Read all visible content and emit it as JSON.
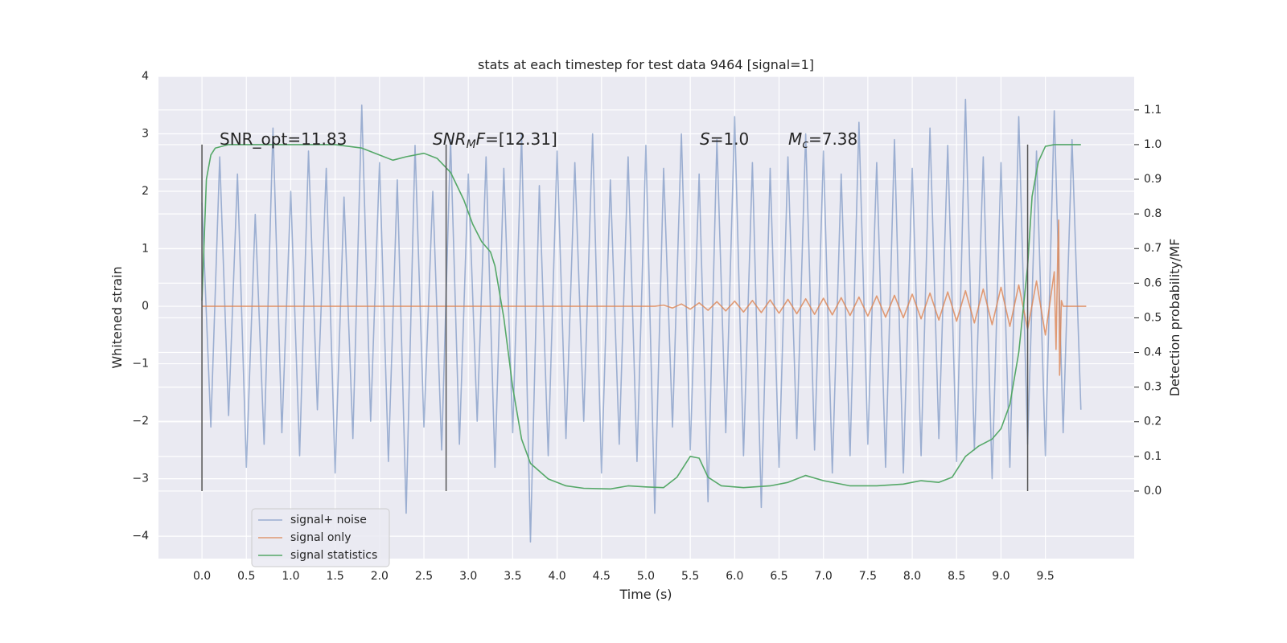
{
  "chart_data": {
    "type": "line",
    "title": "stats at each timestep for test data 9464 [signal=1]",
    "xlabel": "Time (s)",
    "ylabel": "Whitened strain",
    "y2label": "Detection probability/MF",
    "xlim": [
      -0.49,
      10.5
    ],
    "ylim": [
      -4.39,
      4
    ],
    "y2lim": [
      -0.195,
      1.197
    ],
    "xticks": [
      {
        "value": 0,
        "label": "0.0"
      },
      0.5,
      {
        "value": 1,
        "label": "1.0"
      },
      1.5,
      {
        "value": 2,
        "label": "2.0"
      },
      2.5,
      {
        "value": 3,
        "label": "3.0"
      },
      3.5,
      {
        "value": 4,
        "label": "4.0"
      },
      4.5,
      {
        "value": 5,
        "label": "5.0"
      },
      5.5,
      {
        "value": 6,
        "label": "6.0"
      },
      6.5,
      {
        "value": 7,
        "label": "7.0"
      },
      7.5,
      {
        "value": 8,
        "label": "8.0"
      },
      8.5,
      {
        "value": 9,
        "label": "9.0"
      },
      9.5
    ],
    "yticks": [
      {
        "value": -4,
        "label": "−4"
      },
      {
        "value": -3,
        "label": "−3"
      },
      {
        "value": -2,
        "label": "−2"
      },
      {
        "value": -1,
        "label": "−1"
      },
      0,
      1,
      2,
      3,
      4
    ],
    "y2ticks": [
      {
        "value": 0,
        "label": "0.0"
      },
      0.1,
      0.2,
      0.3,
      0.4,
      0.5,
      0.6,
      0.7,
      0.8,
      0.9,
      {
        "value": 1,
        "label": "1.0"
      },
      1.1
    ],
    "grid": true,
    "legend": "lower left",
    "vlines": {
      "x": [
        0,
        2.75,
        9.3
      ],
      "ymin": 0,
      "ymax": 1,
      "axis": "y2",
      "color": "#555555"
    },
    "annotations": [
      [
        {
          "text": "SNR_opt=11.83"
        }
      ],
      [
        {
          "text": "SNR",
          "style": "italic"
        },
        {
          "text": "M",
          "style": "italic-sub"
        },
        {
          "text": "F",
          "style": "italic"
        },
        {
          "text": "=[12.31]"
        }
      ],
      [
        {
          "text": "S",
          "style": "italic"
        },
        {
          "text": "=1.0"
        }
      ],
      [
        {
          "text": "M",
          "style": "italic"
        },
        {
          "text": "c",
          "style": "italic-sub"
        },
        {
          "text": "=7.38"
        }
      ]
    ],
    "series": [
      {
        "name": "signal+ noise",
        "color": "#4c72b0",
        "opacity": 0.5,
        "x": [
          0,
          0.1,
          0.2,
          0.3,
          0.4,
          0.5,
          0.6,
          0.7,
          0.8,
          0.9,
          1,
          1.1,
          1.2,
          1.3,
          1.4,
          1.5,
          1.6,
          1.7,
          1.8,
          1.9,
          2,
          2.1,
          2.2,
          2.3,
          2.4,
          2.5,
          2.6,
          2.7,
          2.8,
          2.9,
          3,
          3.1,
          3.2,
          3.3,
          3.4,
          3.5,
          3.6,
          3.7,
          3.8,
          3.9,
          4,
          4.1,
          4.2,
          4.3,
          4.4,
          4.5,
          4.6,
          4.7,
          4.8,
          4.9,
          5,
          5.1,
          5.2,
          5.3,
          5.4,
          5.5,
          5.6,
          5.7,
          5.8,
          5.9,
          6,
          6.1,
          6.2,
          6.3,
          6.4,
          6.5,
          6.6,
          6.7,
          6.8,
          6.9,
          7,
          7.1,
          7.2,
          7.3,
          7.4,
          7.5,
          7.6,
          7.7,
          7.8,
          7.9,
          8,
          8.1,
          8.2,
          8.3,
          8.4,
          8.5,
          8.6,
          8.7,
          8.8,
          8.9,
          9,
          9.1,
          9.2,
          9.3,
          9.4,
          9.5,
          9.6,
          9.7,
          9.8,
          9.9
        ],
        "values": [
          1.8,
          -2.1,
          2.6,
          -1.9,
          2.3,
          -2.8,
          1.6,
          -2.4,
          3.1,
          -2.2,
          2.0,
          -2.6,
          2.7,
          -1.8,
          2.4,
          -2.9,
          1.9,
          -2.3,
          3.5,
          -2.0,
          2.5,
          -2.7,
          2.2,
          -3.6,
          2.8,
          -2.1,
          2.0,
          -2.5,
          2.9,
          -2.4,
          2.3,
          -2.0,
          2.6,
          -2.8,
          2.4,
          -2.2,
          3.0,
          -4.1,
          2.1,
          -2.6,
          2.7,
          -2.3,
          2.5,
          -2.0,
          3.0,
          -2.9,
          2.2,
          -2.4,
          2.6,
          -2.7,
          2.8,
          -3.6,
          2.4,
          -2.1,
          3.0,
          -2.5,
          2.3,
          -3.4,
          2.9,
          -2.2,
          3.3,
          -2.6,
          2.5,
          -3.5,
          2.4,
          -2.8,
          2.6,
          -2.3,
          3.0,
          -2.5,
          2.7,
          -2.9,
          2.3,
          -2.6,
          3.2,
          -2.4,
          2.5,
          -2.8,
          2.9,
          -2.9,
          2.4,
          -2.6,
          3.1,
          -2.3,
          2.8,
          -2.7,
          3.6,
          -2.5,
          2.6,
          -3.0,
          2.5,
          -2.8,
          3.3,
          -2.4,
          2.7,
          -2.6,
          3.4,
          -2.2,
          2.9,
          -1.8
        ]
      },
      {
        "name": "signal only",
        "color": "#dd8452",
        "opacity": 0.8,
        "x": [
          0,
          5.1,
          5.2,
          5.3,
          5.4,
          5.5,
          5.6,
          5.7,
          5.8,
          5.9,
          6,
          6.1,
          6.2,
          6.3,
          6.4,
          6.5,
          6.6,
          6.7,
          6.8,
          6.9,
          7,
          7.1,
          7.2,
          7.3,
          7.4,
          7.5,
          7.6,
          7.7,
          7.8,
          7.9,
          8,
          8.1,
          8.2,
          8.3,
          8.4,
          8.5,
          8.6,
          8.7,
          8.8,
          8.9,
          9,
          9.1,
          9.2,
          9.3,
          9.4,
          9.5,
          9.6,
          9.62,
          9.64,
          9.65,
          9.66,
          9.68,
          9.7,
          9.96
        ],
        "values": [
          0,
          0,
          0.02,
          -0.03,
          0.04,
          -0.05,
          0.06,
          -0.07,
          0.08,
          -0.08,
          0.09,
          -0.1,
          0.1,
          -0.11,
          0.11,
          -0.12,
          0.12,
          -0.13,
          0.13,
          -0.14,
          0.14,
          -0.15,
          0.15,
          -0.16,
          0.16,
          -0.17,
          0.18,
          -0.19,
          0.19,
          -0.2,
          0.21,
          -0.22,
          0.23,
          -0.24,
          0.25,
          -0.26,
          0.27,
          -0.29,
          0.3,
          -0.32,
          0.33,
          -0.35,
          0.37,
          -0.4,
          0.44,
          -0.5,
          0.6,
          -0.75,
          1.0,
          1.5,
          -1.2,
          0.1,
          0,
          0
        ]
      },
      {
        "name": "signal statistics",
        "color": "#55a868",
        "opacity": 1,
        "axis": "y2",
        "x": [
          0,
          0.05,
          0.1,
          0.15,
          0.3,
          1,
          1.5,
          1.8,
          2,
          2.15,
          2.3,
          2.5,
          2.65,
          2.8,
          2.95,
          3.05,
          3.15,
          3.25,
          3.3,
          3.4,
          3.5,
          3.6,
          3.7,
          3.9,
          4.1,
          4.3,
          4.6,
          4.8,
          5,
          5.2,
          5.35,
          5.5,
          5.6,
          5.7,
          5.85,
          6.1,
          6.4,
          6.6,
          6.8,
          7,
          7.3,
          7.6,
          7.9,
          8.1,
          8.3,
          8.45,
          8.6,
          8.75,
          8.9,
          9,
          9.1,
          9.2,
          9.3,
          9.35,
          9.42,
          9.5,
          9.6,
          9.9
        ],
        "values": [
          0.55,
          0.9,
          0.97,
          0.99,
          1.0,
          1.0,
          1.0,
          0.99,
          0.97,
          0.955,
          0.965,
          0.975,
          0.96,
          0.92,
          0.84,
          0.77,
          0.72,
          0.69,
          0.65,
          0.5,
          0.3,
          0.15,
          0.08,
          0.035,
          0.015,
          0.008,
          0.006,
          0.015,
          0.012,
          0.01,
          0.04,
          0.1,
          0.095,
          0.04,
          0.015,
          0.01,
          0.015,
          0.025,
          0.045,
          0.03,
          0.015,
          0.015,
          0.02,
          0.03,
          0.025,
          0.04,
          0.1,
          0.13,
          0.15,
          0.18,
          0.25,
          0.4,
          0.65,
          0.85,
          0.95,
          0.995,
          1.0,
          1.0
        ]
      }
    ]
  }
}
